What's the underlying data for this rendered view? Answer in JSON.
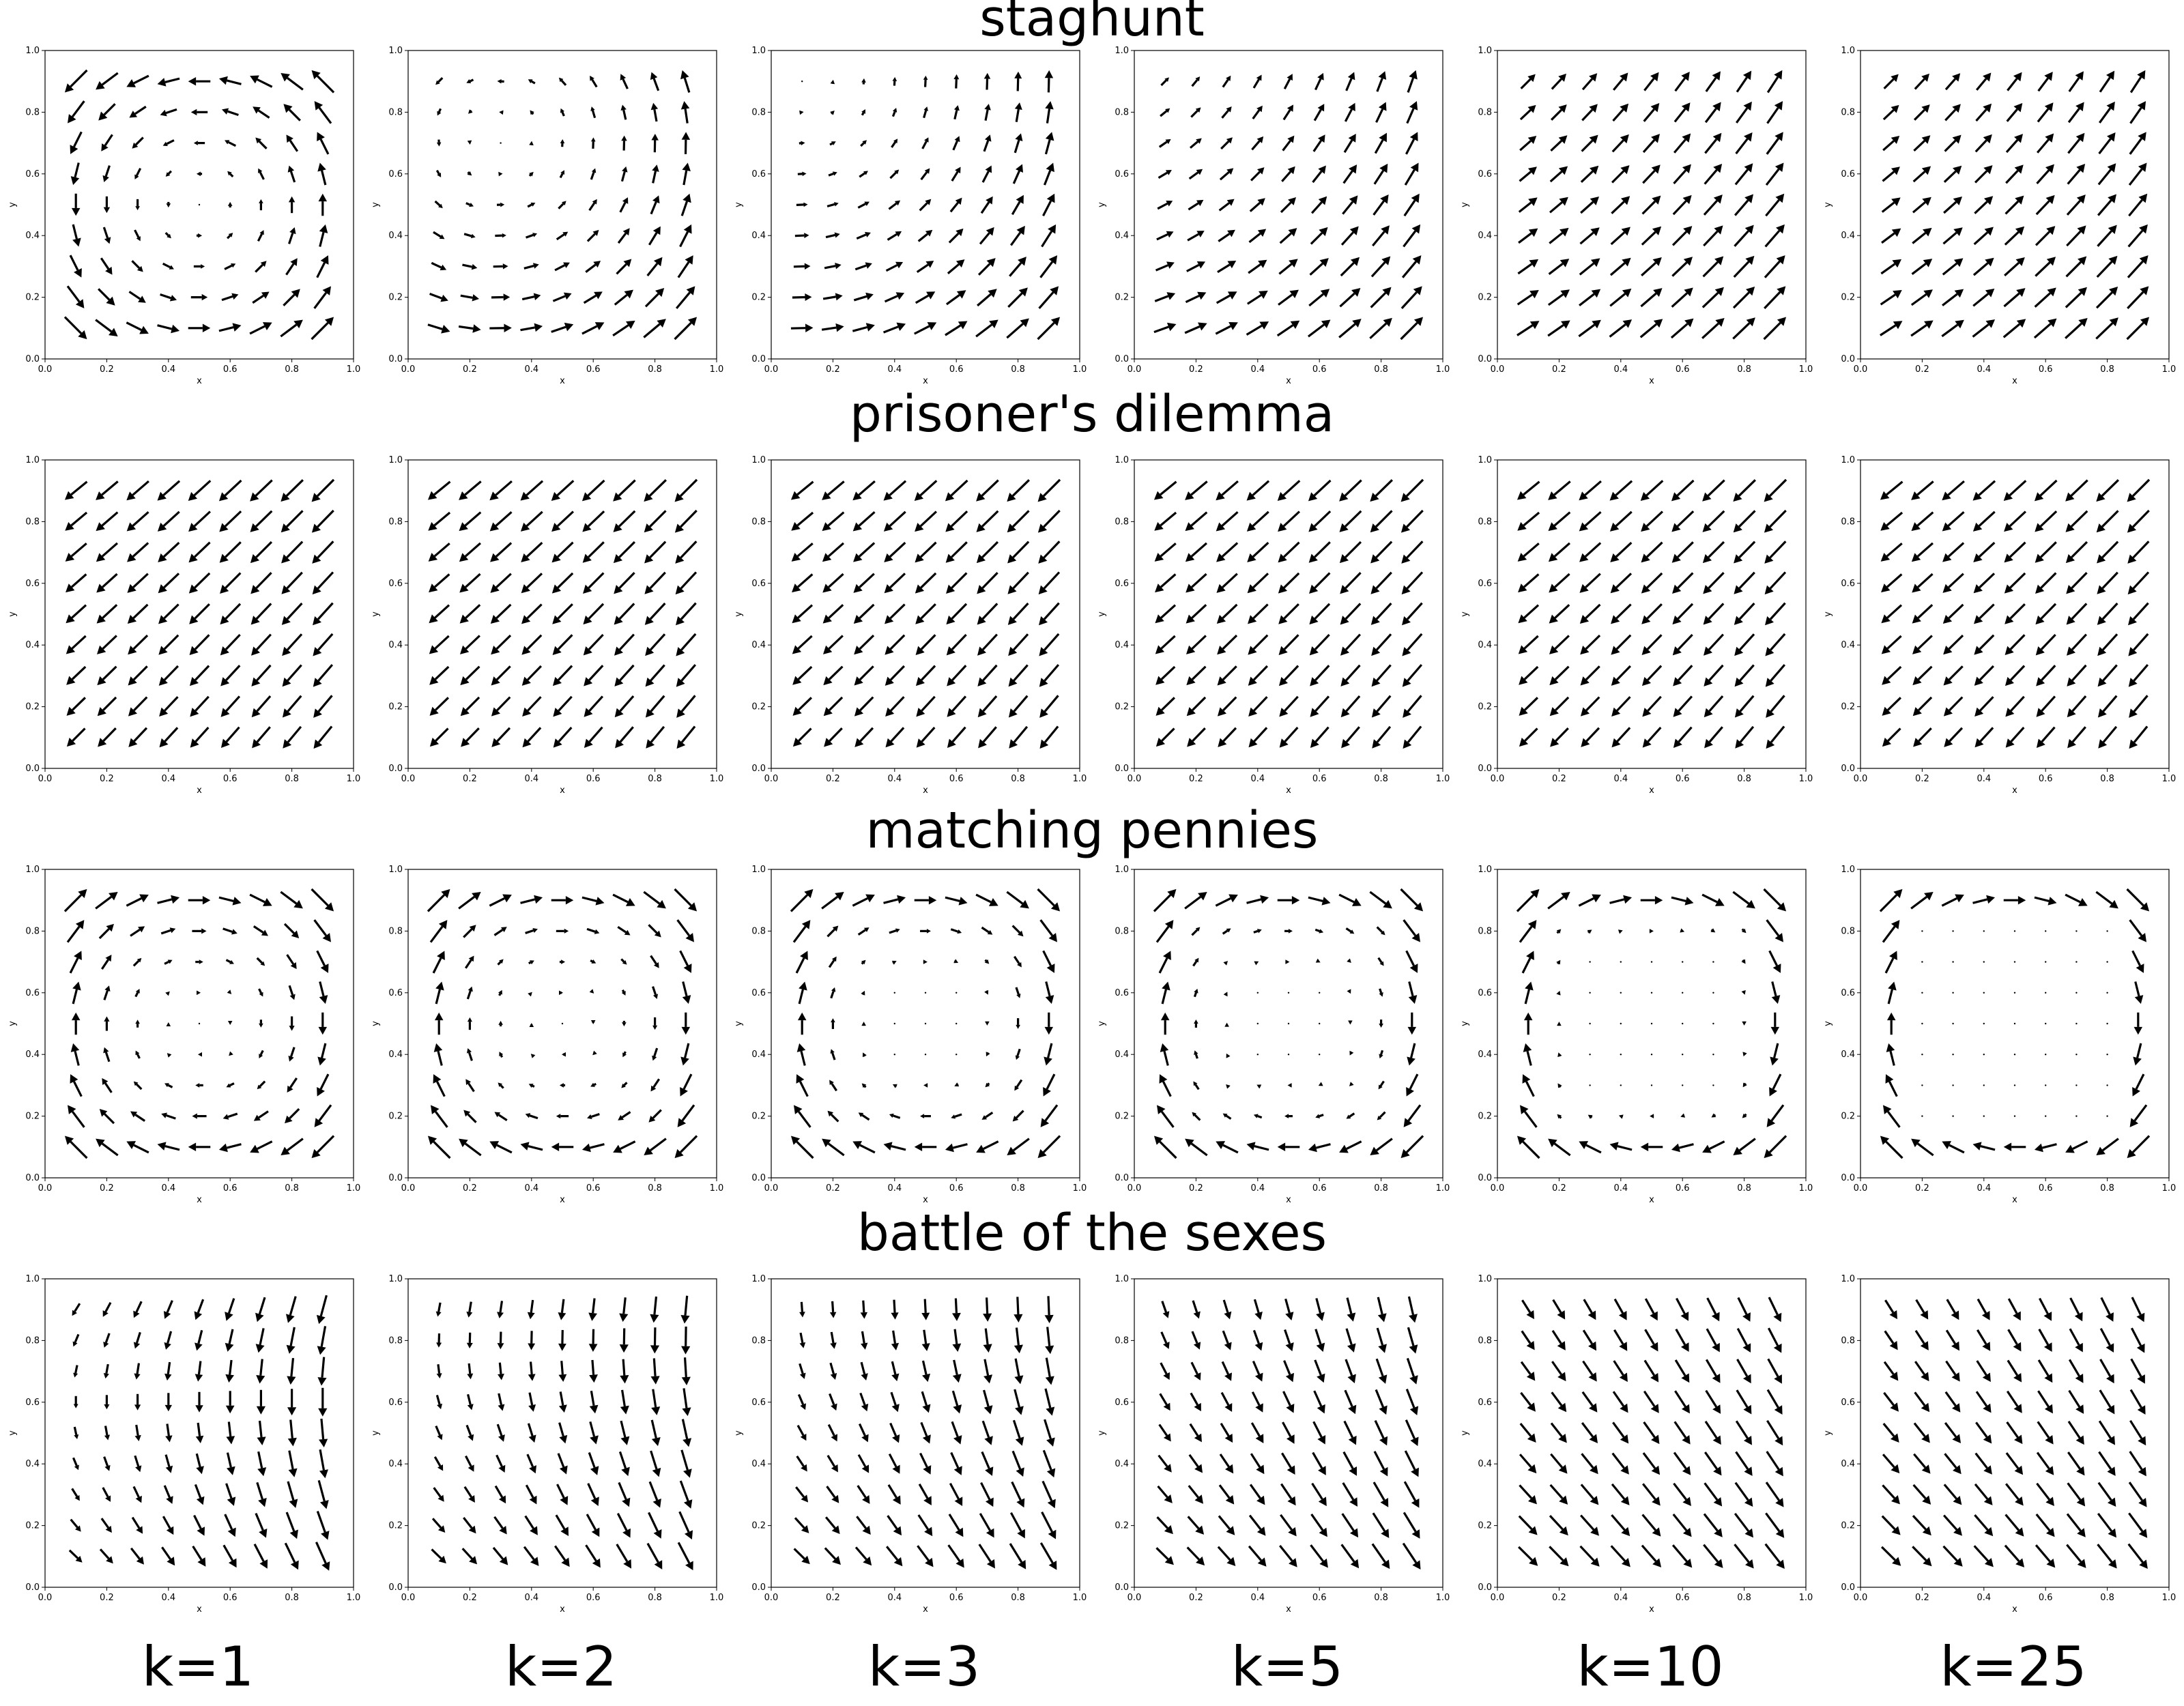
{
  "figure": {
    "rows": [
      {
        "title": "staghunt",
        "game": "staghunt"
      },
      {
        "title": "prisoner's dilemma",
        "game": "prisoners_dilemma"
      },
      {
        "title": "matching pennies",
        "game": "matching_pennies"
      },
      {
        "title": "battle of the sexes",
        "game": "battle_of_the_sexes"
      }
    ],
    "columns": [
      {
        "label": "k=1",
        "k": 1
      },
      {
        "label": "k=2",
        "k": 2
      },
      {
        "label": "k=3",
        "k": 3
      },
      {
        "label": "k=5",
        "k": 5
      },
      {
        "label": "k=10",
        "k": 10
      },
      {
        "label": "k=25",
        "k": 25
      }
    ]
  },
  "chart_data": {
    "type": "quiver",
    "description_fields": {
      "xlabel": "x",
      "ylabel": "y",
      "xlim": [
        0.0,
        1.0
      ],
      "ylim": [
        0.0,
        1.0
      ],
      "xticks": [
        "0.0",
        "0.2",
        "0.4",
        "0.6",
        "0.8",
        "1.0"
      ],
      "yticks": [
        "0.0",
        "0.2",
        "0.4",
        "0.6",
        "0.8",
        "1.0"
      ]
    },
    "grid_points": [
      0.1,
      0.2,
      0.3,
      0.4,
      0.5,
      0.6,
      0.7,
      0.8,
      0.9
    ],
    "arrow_color": "#000000",
    "panels_per_row": 6,
    "rows": 4
  }
}
